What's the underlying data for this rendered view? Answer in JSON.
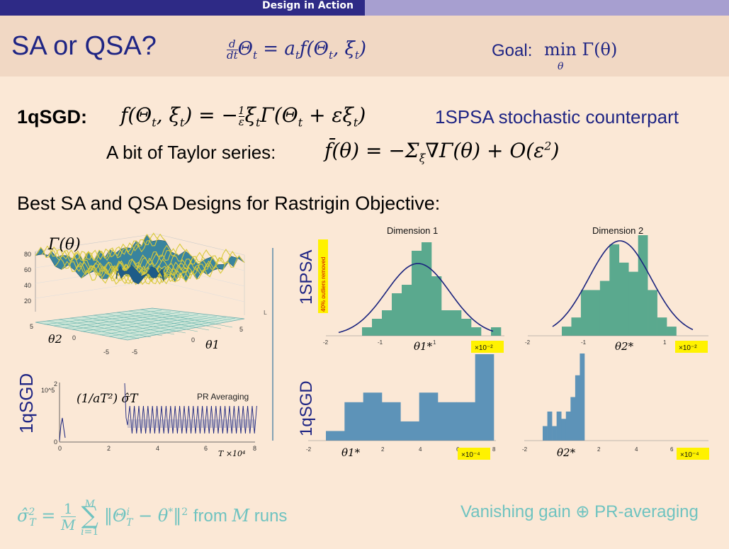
{
  "header": {
    "section": "Design in Action"
  },
  "title": {
    "main": "SA or QSA?",
    "ode": "d/dt Θt = at f(Θt, ξt)",
    "goal_label": "Goal:",
    "goal_math": "min Γ(θ)",
    "goal_sub": "θ"
  },
  "equations": {
    "line1_label": "1qSGD:",
    "line1_math": "f(Θt, ξt) = −(1/ε) ξt Γ(Θt + εξt)",
    "line1_right": "1SPSA stochastic counterpart",
    "line2_label": "A bit of Taylor series:",
    "line2_math": "f̄(θ) = −Σξ ∇Γ(θ) + O(ε²)"
  },
  "section_heading": "Best SA and QSA Designs for Rastrigin Objective:",
  "surface_plot": {
    "label": "Γ(θ)",
    "z_ticks": [
      "80",
      "60",
      "40",
      "20"
    ],
    "y_ticks": [
      "5",
      "0",
      "-5"
    ],
    "x_ticks": [
      "-5",
      "0",
      "5"
    ],
    "x_axis": "θ1",
    "y_axis": "θ2"
  },
  "variance_plot": {
    "row_label": "1qSGD",
    "y_label": "10^5",
    "y_tick_top": "2",
    "y_tick_bottom": "0",
    "annotation": "(1/aT²) σ̂T",
    "series_label": "PR Averaging",
    "x_ticks": [
      "0",
      "2",
      "4",
      "6",
      "8"
    ],
    "x_axis": "T ×10⁴"
  },
  "histograms": {
    "row1_label": "1SPSA",
    "row1_note": "40% outliers removed",
    "row2_label": "1qSGD",
    "dim1_title": "Dimension 1",
    "dim2_title": "Dimension 2",
    "scale_1e2": "×10⁻²",
    "scale_1e4": "×10⁻⁴",
    "axis_dim1": "θ1*",
    "axis_dim2": "θ2*",
    "top_ticks": [
      "-2",
      "-1",
      "0",
      "1",
      "2"
    ],
    "bottom_ticks": [
      "-2",
      "0",
      "2",
      "4",
      "6",
      "8"
    ]
  },
  "footer": {
    "left_math": "σ̂T² = (1/M) Σ ||ΘTi − θ*||²",
    "left_text": "from M runs",
    "right_text": "Vanishing gain ⊕ PR-averaging"
  },
  "colors": {
    "navy": "#1f2584",
    "teal_hist": "#5aa98e",
    "blue_hist": "#5d93b8",
    "highlight": "#fff200",
    "footer": "#6fc3c0"
  },
  "chart_data": [
    {
      "type": "bar",
      "name": "1SPSA Dimension 1",
      "x": [
        -1.3,
        -1.1,
        -0.9,
        -0.7,
        -0.5,
        -0.3,
        -0.1,
        0.1,
        0.3,
        0.5,
        0.7,
        0.9,
        1.1,
        1.3
      ],
      "values": [
        1,
        2,
        3,
        5,
        6,
        10,
        11,
        7,
        3,
        3,
        2,
        1,
        0,
        1
      ]
    },
    {
      "type": "bar",
      "name": "1SPSA Dimension 2",
      "x": [
        -1.3,
        -1.1,
        -0.9,
        -0.7,
        -0.5,
        -0.3,
        -0.1,
        0.1,
        0.3,
        0.5,
        0.7,
        0.9,
        1.1
      ],
      "values": [
        1,
        2,
        5,
        5,
        6,
        10,
        8,
        7,
        11,
        5,
        2,
        1,
        0
      ]
    },
    {
      "type": "bar",
      "name": "1qSGD Dimension 1",
      "x": [
        -1,
        0,
        1,
        2,
        3,
        4,
        5,
        6,
        7
      ],
      "values": [
        1,
        4,
        5,
        4,
        2,
        5,
        4,
        4,
        9
      ]
    },
    {
      "type": "bar",
      "name": "1qSGD Dimension 2",
      "x": [
        0.25,
        0.35,
        0.45,
        0.55,
        0.65,
        0.75,
        0.85,
        0.95,
        1.05
      ],
      "values": [
        2,
        4,
        2,
        4,
        3,
        4,
        6,
        9,
        12
      ]
    },
    {
      "type": "line",
      "name": "PR Averaging",
      "xlim": [
        0,
        8
      ],
      "ylim": [
        0,
        2
      ]
    }
  ]
}
